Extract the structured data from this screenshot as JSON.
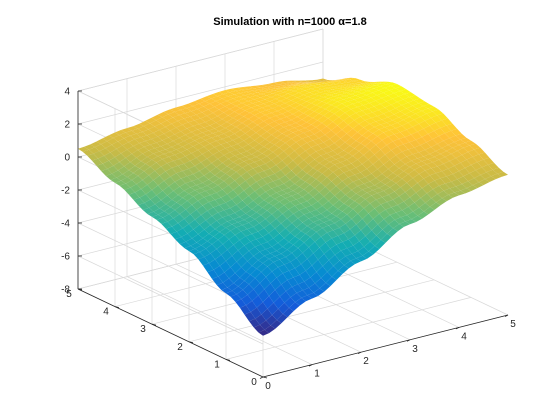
{
  "chart_data": {
    "type": "surface",
    "title": "Simulation with n=1000 α=1.8",
    "xlabel": "",
    "ylabel": "",
    "zlabel": "",
    "xlim": [
      0,
      5
    ],
    "ylim": [
      0,
      5
    ],
    "zlim": [
      -8,
      4
    ],
    "x_ticks": [
      "0",
      "1",
      "2",
      "3",
      "4",
      "5"
    ],
    "y_ticks": [
      "0",
      "1",
      "2",
      "3",
      "4",
      "5"
    ],
    "z_ticks": [
      "-8",
      "-6",
      "-4",
      "-2",
      "0",
      "2",
      "4"
    ],
    "grid": true,
    "colormap": "parula",
    "surface": {
      "x": [
        0,
        1,
        2,
        3,
        4,
        5
      ],
      "y": [
        0,
        1,
        2,
        3,
        4,
        5
      ],
      "z": [
        [
          -5.5,
          -4.0,
          -2.5,
          -1.0,
          0.0,
          0.5
        ],
        [
          -4.0,
          -2.5,
          -1.2,
          0.0,
          1.0,
          1.5
        ],
        [
          -2.5,
          -1.5,
          -0.5,
          0.8,
          2.0,
          2.5
        ],
        [
          -1.5,
          -0.5,
          0.5,
          1.5,
          2.5,
          2.8
        ],
        [
          -0.5,
          0.5,
          1.0,
          1.8,
          2.2,
          2.0
        ],
        [
          0.5,
          1.0,
          1.5,
          1.8,
          1.5,
          1.0
        ]
      ]
    }
  }
}
